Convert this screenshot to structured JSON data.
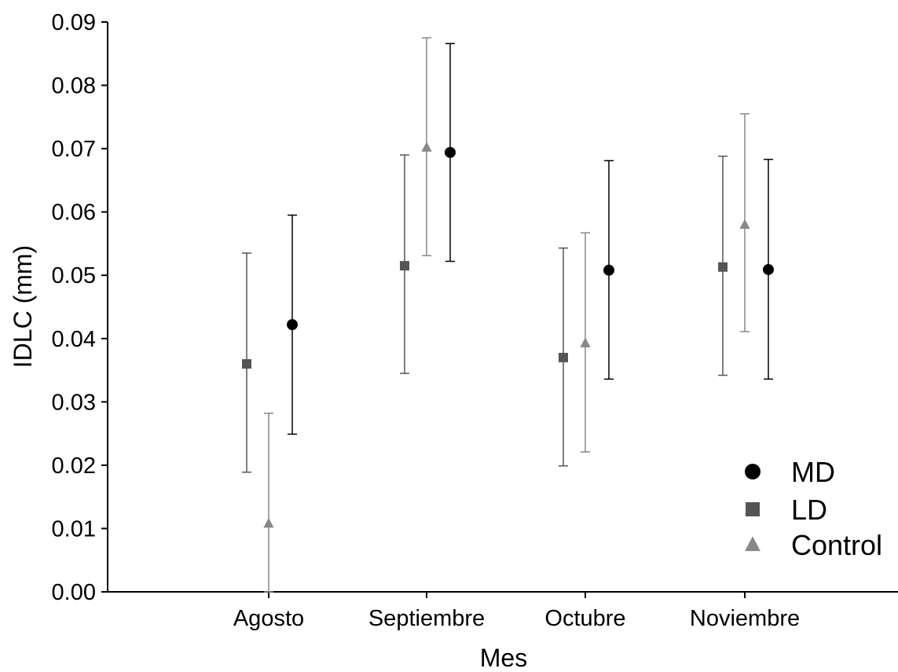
{
  "chart_data": {
    "type": "scatter",
    "subtype": "means-with-error-bars",
    "title": "",
    "xlabel": "Mes",
    "ylabel": "IDLC (mm)",
    "categories": [
      "Agosto",
      "Septiembre",
      "Octubre",
      "Noviembre"
    ],
    "ylim": [
      0,
      0.09
    ],
    "yticks": [
      "0.00",
      "0.01",
      "0.02",
      "0.03",
      "0.04",
      "0.05",
      "0.06",
      "0.07",
      "0.08",
      "0.09"
    ],
    "grid": false,
    "legend_position": "bottom-right",
    "series": [
      {
        "name": "LD",
        "marker": "square",
        "color": "#555555",
        "values": [
          0.036,
          0.0515,
          0.037,
          0.0513
        ],
        "lower": [
          0.0189,
          0.0345,
          0.0199,
          0.0342
        ],
        "upper": [
          0.0535,
          0.069,
          0.0543,
          0.0688
        ]
      },
      {
        "name": "Control",
        "marker": "triangle",
        "color": "#888888",
        "values": [
          0.0108,
          0.0702,
          0.0393,
          0.058
        ],
        "lower": [
          0.0,
          0.0531,
          0.0221,
          0.0411
        ],
        "upper": [
          0.0282,
          0.0875,
          0.0567,
          0.0755
        ]
      },
      {
        "name": "MD",
        "marker": "circle",
        "color": "#000000",
        "values": [
          0.0422,
          0.0694,
          0.0508,
          0.0509
        ],
        "lower": [
          0.0249,
          0.0522,
          0.0336,
          0.0336
        ],
        "upper": [
          0.0595,
          0.0866,
          0.0681,
          0.0683
        ]
      }
    ],
    "legend_order": [
      "MD",
      "LD",
      "Control"
    ]
  }
}
